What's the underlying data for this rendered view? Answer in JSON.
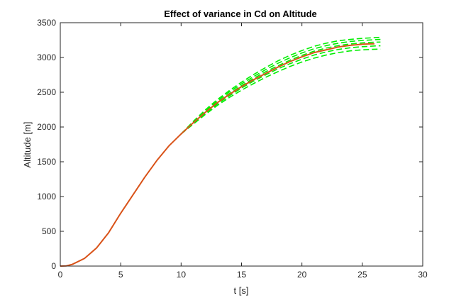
{
  "chart_data": {
    "type": "line",
    "title": "Effect of variance in Cd on Altitude",
    "xlabel": "t [s]",
    "ylabel": "Altitude [m]",
    "xlim": [
      0,
      30
    ],
    "ylim": [
      0,
      3500
    ],
    "xticks": [
      0,
      5,
      10,
      15,
      20,
      25,
      30
    ],
    "yticks": [
      0,
      500,
      1000,
      1500,
      2000,
      2500,
      3000,
      3500
    ],
    "grid": false,
    "legend": "none",
    "colors": {
      "nominal": "#d95319",
      "variants": "#00ee00",
      "axes": "#262626"
    },
    "series": [
      {
        "role": "nominal",
        "style": "solid",
        "x": [
          0,
          0.5,
          1,
          2,
          3,
          4,
          5,
          6,
          7,
          8,
          9,
          10,
          11,
          12,
          13,
          14,
          15,
          16,
          17,
          18,
          19,
          20,
          21,
          22,
          23,
          24,
          25,
          25.5,
          26
        ],
        "y": [
          0,
          3,
          25,
          110,
          260,
          480,
          760,
          1020,
          1280,
          1520,
          1730,
          1900,
          2060,
          2210,
          2350,
          2470,
          2580,
          2680,
          2770,
          2860,
          2940,
          3010,
          3070,
          3110,
          3150,
          3175,
          3190,
          3195,
          3197
        ]
      },
      {
        "role": "variant-high",
        "style": "dashed",
        "x": [
          10,
          11,
          12,
          13,
          14,
          15,
          16,
          17,
          18,
          19,
          20,
          21,
          22,
          23,
          24,
          25,
          26,
          26.5
        ],
        "y": [
          1900,
          2080,
          2245,
          2395,
          2525,
          2645,
          2755,
          2855,
          2950,
          3030,
          3100,
          3160,
          3205,
          3240,
          3260,
          3275,
          3285,
          3290
        ]
      },
      {
        "role": "variant-upper",
        "style": "dashed",
        "x": [
          10,
          11,
          12,
          13,
          14,
          15,
          16,
          17,
          18,
          19,
          20,
          21,
          22,
          23,
          24,
          25,
          26,
          26.5
        ],
        "y": [
          1900,
          2070,
          2230,
          2375,
          2505,
          2620,
          2725,
          2825,
          2915,
          2995,
          3065,
          3125,
          3170,
          3205,
          3230,
          3245,
          3255,
          3260
        ]
      },
      {
        "role": "variant-mid",
        "style": "dashed",
        "x": [
          10,
          11,
          12,
          13,
          14,
          15,
          16,
          17,
          18,
          19,
          20,
          21,
          22,
          23,
          24,
          25,
          26,
          26.5
        ],
        "y": [
          1900,
          2060,
          2215,
          2355,
          2480,
          2595,
          2700,
          2795,
          2880,
          2960,
          3030,
          3090,
          3135,
          3170,
          3195,
          3210,
          3220,
          3222
        ]
      },
      {
        "role": "variant-lower",
        "style": "dashed",
        "x": [
          10,
          11,
          12,
          13,
          14,
          15,
          16,
          17,
          18,
          19,
          20,
          21,
          22,
          23,
          24,
          25,
          26,
          26.5
        ],
        "y": [
          1900,
          2050,
          2195,
          2330,
          2450,
          2560,
          2660,
          2750,
          2835,
          2910,
          2975,
          3035,
          3080,
          3115,
          3140,
          3155,
          3165,
          3168
        ]
      },
      {
        "role": "variant-low",
        "style": "dashed",
        "x": [
          10,
          11,
          12,
          13,
          14,
          15,
          16,
          17,
          18,
          19,
          20,
          21,
          22,
          23,
          24,
          25,
          26,
          26.5
        ],
        "y": [
          1900,
          2040,
          2180,
          2310,
          2425,
          2530,
          2625,
          2715,
          2795,
          2870,
          2935,
          2990,
          3035,
          3070,
          3095,
          3110,
          3118,
          3120
        ]
      }
    ]
  }
}
